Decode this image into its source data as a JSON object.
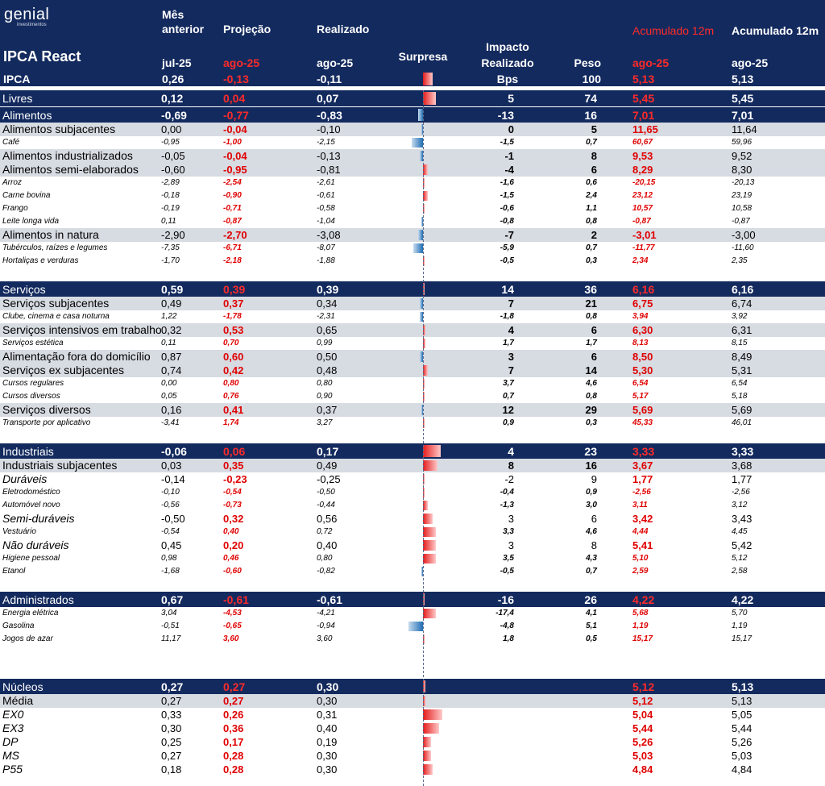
{
  "logo": {
    "word": "genial",
    "sub": "investimentos"
  },
  "header": {
    "title": "IPCA React",
    "col1_top": "Mês",
    "col1_mid": "anterior",
    "col1_date": "jul-25",
    "col2_mid": "Projeção",
    "col2_date": "ago-25",
    "col3_mid": "Realizado",
    "col3_date": "ago-25",
    "surpresa": "Surpresa",
    "impacto_1": "Impacto",
    "impacto_2": "Realizado",
    "impacto_3": "Bps",
    "peso": "Peso",
    "peso_val": "100",
    "acum1": "Acumulado 12m",
    "acum1_date": "ago-25",
    "acum2": "Acumulado 12m",
    "acum2_date": "ago-25",
    "ipca_label": "IPCA",
    "ipca_v1": "0,26",
    "ipca_v2": "-0,13",
    "ipca_v3": "-0,11",
    "ipca_a1": "5,13",
    "ipca_a2": "5,13",
    "ipca_surprise": 0.3
  },
  "colors": {
    "navy": "#132a5e",
    "subrow": "#d7dbe2",
    "red": "#e00000",
    "bar_pos": "#e41b1b",
    "bar_neg": "#1f6db3"
  },
  "rows": [
    {
      "t": "sec",
      "label": "Livres",
      "v1": "0,12",
      "v2": "0,04",
      "v3": "0,07",
      "bps": "5",
      "peso": "74",
      "a1": "5,45",
      "a2": "5,45",
      "s": 0.4
    },
    {
      "t": "sec",
      "label": "Alimentos",
      "v1": "-0,69",
      "v2": "-0,77",
      "v3": "-0,83",
      "bps": "-13",
      "peso": "16",
      "a1": "7,01",
      "a2": "7,01",
      "s": -0.15
    },
    {
      "t": "sub",
      "label": "Alimentos subjacentes",
      "v1": "0,00",
      "v2": "-0,04",
      "v3": "-0,10",
      "bps": "0",
      "peso": "5",
      "a1": "11,65",
      "a2": "11,64",
      "s": -0.05
    },
    {
      "t": "item",
      "label": "Café",
      "v1": "-0,95",
      "v2": "-1,00",
      "v3": "-2,15",
      "bps": "-1,5",
      "peso": "0,7",
      "a1": "60,67",
      "a2": "59,96",
      "s": -0.35
    },
    {
      "t": "sub",
      "label": "Alimentos industrializados",
      "v1": "-0,05",
      "v2": "-0,04",
      "v3": "-0,13",
      "bps": "-1",
      "peso": "8",
      "a1": "9,53",
      "a2": "9,52",
      "s": -0.1
    },
    {
      "t": "sub",
      "label": "Alimentos semi-elaborados",
      "v1": "-0,60",
      "v2": "-0,95",
      "v3": "-0,81",
      "bps": "-4",
      "peso": "6",
      "a1": "8,29",
      "a2": "8,30",
      "s": 0.15
    },
    {
      "t": "item",
      "label": "Arroz",
      "v1": "-2,89",
      "v2": "-2,54",
      "v3": "-2,61",
      "bps": "-1,6",
      "peso": "0,6",
      "a1": "-20,15",
      "a2": "-20,13",
      "s": 0.0
    },
    {
      "t": "item",
      "label": "Carne bovina",
      "v1": "-0,18",
      "v2": "-0,90",
      "v3": "-0,61",
      "bps": "-1,5",
      "peso": "2,4",
      "a1": "23,12",
      "a2": "23,19",
      "s": 0.15
    },
    {
      "t": "item",
      "label": "Frango",
      "v1": "-0,19",
      "v2": "-0,71",
      "v3": "-0,58",
      "bps": "-0,6",
      "peso": "1,1",
      "a1": "10,57",
      "a2": "10,58",
      "s": 0.05
    },
    {
      "t": "item",
      "label": "Leite longa vida",
      "v1": "0,11",
      "v2": "-0,87",
      "v3": "-1,04",
      "bps": "-0,8",
      "peso": "0,8",
      "a1": "-0,87",
      "a2": "-0,87",
      "s": -0.05
    },
    {
      "t": "sub",
      "label": "Alimentos in natura",
      "v1": "-2,90",
      "v2": "-2,70",
      "v3": "-3,08",
      "bps": "-7",
      "peso": "2",
      "a1": "-3,01",
      "a2": "-3,00",
      "s": -0.15
    },
    {
      "t": "item",
      "label": "Tubérculos, raízes e legumes",
      "v1": "-7,35",
      "v2": "-6,71",
      "v3": "-8,07",
      "bps": "-5,9",
      "peso": "0,7",
      "a1": "-11,77",
      "a2": "-11,60",
      "s": -0.3
    },
    {
      "t": "item",
      "label": "Hortaliças e verduras",
      "v1": "-1,70",
      "v2": "-2,18",
      "v3": "-1,88",
      "bps": "-0,5",
      "peso": "0,3",
      "a1": "2,34",
      "a2": "2,35",
      "s": 0.05
    },
    {
      "t": "gap"
    },
    {
      "t": "sec",
      "label": "Serviços",
      "v1": "0,59",
      "v2": "0,39",
      "v3": "0,39",
      "bps": "14",
      "peso": "36",
      "a1": "6,16",
      "a2": "6,16",
      "s": 0.0
    },
    {
      "t": "sub",
      "label": "Serviços subjacentes",
      "v1": "0,49",
      "v2": "0,37",
      "v3": "0,34",
      "bps": "7",
      "peso": "21",
      "a1": "6,75",
      "a2": "6,74",
      "s": -0.1
    },
    {
      "t": "item",
      "label": "Clube, cinema e casa noturna",
      "v1": "1,22",
      "v2": "-1,78",
      "v3": "-2,31",
      "bps": "-1,8",
      "peso": "0,8",
      "a1": "3,94",
      "a2": "3,92",
      "s": -0.1
    },
    {
      "t": "sub",
      "label": "Serviços intensivos em trabalho",
      "v1": "0,32",
      "v2": "0,53",
      "v3": "0,65",
      "bps": "4",
      "peso": "6",
      "a1": "6,30",
      "a2": "6,31",
      "s": 0.08
    },
    {
      "t": "item",
      "label": "Serviços estética",
      "v1": "0,11",
      "v2": "0,70",
      "v3": "0,99",
      "bps": "1,7",
      "peso": "1,7",
      "a1": "8,13",
      "a2": "8,15",
      "s": 0.08
    },
    {
      "t": "sub",
      "label": "Alimentação fora do domicílio",
      "v1": "0,87",
      "v2": "0,60",
      "v3": "0,50",
      "bps": "3",
      "peso": "6",
      "a1": "8,50",
      "a2": "8,49",
      "s": -0.1
    },
    {
      "t": "sub",
      "label": "Serviços ex subjacentes",
      "v1": "0,74",
      "v2": "0,42",
      "v3": "0,48",
      "bps": "7",
      "peso": "14",
      "a1": "5,30",
      "a2": "5,31",
      "s": 0.15
    },
    {
      "t": "item",
      "label": "Cursos regulares",
      "v1": "0,00",
      "v2": "0,80",
      "v3": "0,80",
      "bps": "3,7",
      "peso": "4,6",
      "a1": "6,54",
      "a2": "6,54",
      "s": 0.0
    },
    {
      "t": "item",
      "label": "Cursos diversos",
      "v1": "0,05",
      "v2": "0,76",
      "v3": "0,90",
      "bps": "0,7",
      "peso": "0,8",
      "a1": "5,17",
      "a2": "5,18",
      "s": 0.05
    },
    {
      "t": "sub",
      "label": "Serviços diversos",
      "v1": "0,16",
      "v2": "0,41",
      "v3": "0,37",
      "bps": "12",
      "peso": "29",
      "a1": "5,69",
      "a2": "5,69",
      "s": -0.03
    },
    {
      "t": "item",
      "label": "Transporte por aplicativo",
      "v1": "-3,41",
      "v2": "1,74",
      "v3": "3,27",
      "bps": "0,9",
      "peso": "0,3",
      "a1": "45,33",
      "a2": "46,01",
      "s": 0.05
    },
    {
      "t": "gap"
    },
    {
      "t": "sec",
      "label": "Industriais",
      "v1": "-0,06",
      "v2": "0,06",
      "v3": "0,17",
      "bps": "4",
      "peso": "23",
      "a1": "3,33",
      "a2": "3,33",
      "s": 0.55
    },
    {
      "t": "sub",
      "label": "Industriais subjacentes",
      "v1": "0,03",
      "v2": "0,35",
      "v3": "0,49",
      "bps": "8",
      "peso": "16",
      "a1": "3,67",
      "a2": "3,68",
      "s": 0.45
    },
    {
      "t": "itemw",
      "label": "Duráveis",
      "v1": "-0,14",
      "v2": "-0,23",
      "v3": "-0,25",
      "bps": "-2",
      "peso": "9",
      "a1": "1,77",
      "a2": "1,77",
      "s": 0.0
    },
    {
      "t": "item",
      "label": "Eletrodoméstico",
      "v1": "-0,10",
      "v2": "-0,54",
      "v3": "-0,50",
      "bps": "-0,4",
      "peso": "0,9",
      "a1": "-2,56",
      "a2": "-2,56",
      "s": 0.0
    },
    {
      "t": "item",
      "label": "Automóvel novo",
      "v1": "-0,56",
      "v2": "-0,73",
      "v3": "-0,44",
      "bps": "-1,3",
      "peso": "3,0",
      "a1": "3,11",
      "a2": "3,12",
      "s": 0.15
    },
    {
      "t": "itemw",
      "label": "Semi-duráveis",
      "v1": "-0,50",
      "v2": "0,32",
      "v3": "0,56",
      "bps": "3",
      "peso": "6",
      "a1": "3,42",
      "a2": "3,43",
      "s": 0.3
    },
    {
      "t": "item",
      "label": "Vestuário",
      "v1": "-0,54",
      "v2": "0,40",
      "v3": "0,72",
      "bps": "3,3",
      "peso": "4,6",
      "a1": "4,44",
      "a2": "4,45",
      "s": 0.4
    },
    {
      "t": "itemw",
      "label": "Não duráveis",
      "v1": "0,45",
      "v2": "0,20",
      "v3": "0,40",
      "bps": "3",
      "peso": "8",
      "a1": "5,41",
      "a2": "5,42",
      "s": 0.4
    },
    {
      "t": "item",
      "label": "Higiene pessoal",
      "v1": "0,98",
      "v2": "0,46",
      "v3": "0,80",
      "bps": "3,5",
      "peso": "4,3",
      "a1": "5,10",
      "a2": "5,12",
      "s": 0.4
    },
    {
      "t": "item",
      "label": "Etanol",
      "v1": "-1,68",
      "v2": "-0,60",
      "v3": "-0,82",
      "bps": "-0,5",
      "peso": "0,7",
      "a1": "2,59",
      "a2": "2,58",
      "s": -0.05
    },
    {
      "t": "gap"
    },
    {
      "t": "sec",
      "label": "Administrados",
      "v1": "0,67",
      "v2": "-0,61",
      "v3": "-0,61",
      "bps": "-16",
      "peso": "26",
      "a1": "4,22",
      "a2": "4,22",
      "s": 0.0
    },
    {
      "t": "item",
      "label": "Energia elétrica",
      "v1": "3,04",
      "v2": "-4,53",
      "v3": "-4,21",
      "bps": "-17,4",
      "peso": "4,1",
      "a1": "5,68",
      "a2": "5,70",
      "s": 0.4
    },
    {
      "t": "item",
      "label": "Gasolina",
      "v1": "-0,51",
      "v2": "-0,65",
      "v3": "-0,94",
      "bps": "-4,8",
      "peso": "5,1",
      "a1": "1,19",
      "a2": "1,19",
      "s": -0.45
    },
    {
      "t": "item",
      "label": "Jogos de azar",
      "v1": "11,17",
      "v2": "3,60",
      "v3": "3,60",
      "bps": "1,8",
      "peso": "0,5",
      "a1": "15,17",
      "a2": "15,17",
      "s": 0.0
    },
    {
      "t": "gap2"
    },
    {
      "t": "sec",
      "label": "Núcleos",
      "v1": "0,27",
      "v2": "0,27",
      "v3": "0,30",
      "bps": "",
      "peso": "",
      "a1": "5,12",
      "a2": "5,13",
      "s": 0.08
    },
    {
      "t": "sub",
      "label": "Média",
      "v1": "0,27",
      "v2": "0,27",
      "v3": "0,30",
      "bps": "",
      "peso": "",
      "a1": "5,12",
      "a2": "5,13",
      "s": 0.08
    },
    {
      "t": "itemw",
      "label": "EX0",
      "v1": "0,33",
      "v2": "0,26",
      "v3": "0,31",
      "bps": "",
      "peso": "",
      "a1": "5,04",
      "a2": "5,05",
      "s": 0.6
    },
    {
      "t": "itemw",
      "label": "EX3",
      "v1": "0,30",
      "v2": "0,36",
      "v3": "0,40",
      "bps": "",
      "peso": "",
      "a1": "5,44",
      "a2": "5,44",
      "s": 0.5
    },
    {
      "t": "itemw",
      "label": "DP",
      "v1": "0,25",
      "v2": "0,17",
      "v3": "0,19",
      "bps": "",
      "peso": "",
      "a1": "5,26",
      "a2": "5,26",
      "s": 0.25
    },
    {
      "t": "itemw",
      "label": "MS",
      "v1": "0,27",
      "v2": "0,28",
      "v3": "0,30",
      "bps": "",
      "peso": "",
      "a1": "5,03",
      "a2": "5,03",
      "s": 0.25
    },
    {
      "t": "itemw",
      "label": "P55",
      "v1": "0,18",
      "v2": "0,28",
      "v3": "0,30",
      "bps": "",
      "peso": "",
      "a1": "4,84",
      "a2": "4,84",
      "s": 0.3
    }
  ]
}
